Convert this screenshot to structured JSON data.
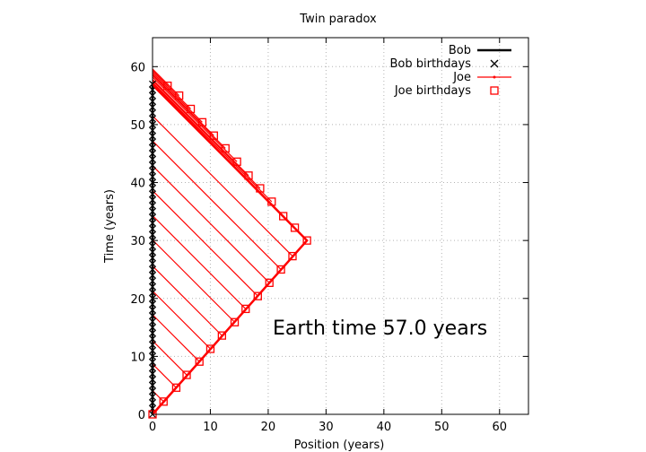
{
  "chart_data": {
    "type": "line",
    "title": "Twin paradox",
    "xlabel": "Position (years)",
    "ylabel": "Time (years)",
    "xlim": [
      0,
      65
    ],
    "ylim": [
      0,
      65
    ],
    "xticks": [
      0,
      10,
      20,
      30,
      40,
      50,
      60
    ],
    "yticks": [
      0,
      10,
      20,
      30,
      40,
      50,
      60
    ],
    "grid": true,
    "legend_position": "top-right",
    "annotation": "Earth time 57.0 years",
    "series": [
      {
        "name": "Bob",
        "style": "line",
        "color": "#000000",
        "x": [
          0,
          0
        ],
        "y": [
          0,
          57
        ]
      },
      {
        "name": "Bob birthdays",
        "style": "markers-x",
        "color": "#000000",
        "x": [
          0,
          0,
          0,
          0,
          0,
          0,
          0,
          0,
          0,
          0,
          0,
          0,
          0,
          0,
          0,
          0,
          0,
          0,
          0,
          0,
          0,
          0,
          0,
          0,
          0,
          0,
          0,
          0,
          0,
          0,
          0,
          0,
          0,
          0,
          0,
          0,
          0,
          0,
          0,
          0,
          0,
          0,
          0,
          0,
          0,
          0,
          0,
          0,
          0,
          0,
          0,
          0,
          0,
          0,
          0,
          0,
          0,
          0
        ],
        "y": [
          0,
          1,
          2,
          3,
          4,
          5,
          6,
          7,
          8,
          9,
          10,
          11,
          12,
          13,
          14,
          15,
          16,
          17,
          18,
          19,
          20,
          21,
          22,
          23,
          24,
          25,
          26,
          27,
          28,
          29,
          30,
          31,
          32,
          33,
          34,
          35,
          36,
          37,
          38,
          39,
          40,
          41,
          42,
          43,
          44,
          45,
          46,
          47,
          48,
          49,
          50,
          51,
          52,
          53,
          54,
          55,
          56,
          57
        ]
      },
      {
        "name": "Joe",
        "style": "line",
        "color": "#ff0000",
        "x": [
          0,
          26.7,
          0
        ],
        "y": [
          0,
          30,
          57
        ]
      },
      {
        "name": "Joe birthdays",
        "style": "markers-square",
        "color": "#ff0000",
        "x": [
          0,
          1.9,
          4.1,
          5.9,
          8.1,
          10.0,
          12.0,
          14.2,
          16.1,
          18.2,
          20.2,
          22.2,
          24.2,
          26.7,
          24.6,
          22.6,
          20.6,
          18.6,
          16.6,
          14.6,
          12.6,
          10.6,
          8.6,
          6.6,
          4.6,
          2.6
        ],
        "y": [
          0,
          2.2,
          4.6,
          6.8,
          9.1,
          11.3,
          13.6,
          15.9,
          18.2,
          20.4,
          22.7,
          25.0,
          27.3,
          30.0,
          32.2,
          34.2,
          36.7,
          39.0,
          41.2,
          43.6,
          45.9,
          48.1,
          50.4,
          52.7,
          55.0,
          56.7
        ]
      }
    ]
  }
}
